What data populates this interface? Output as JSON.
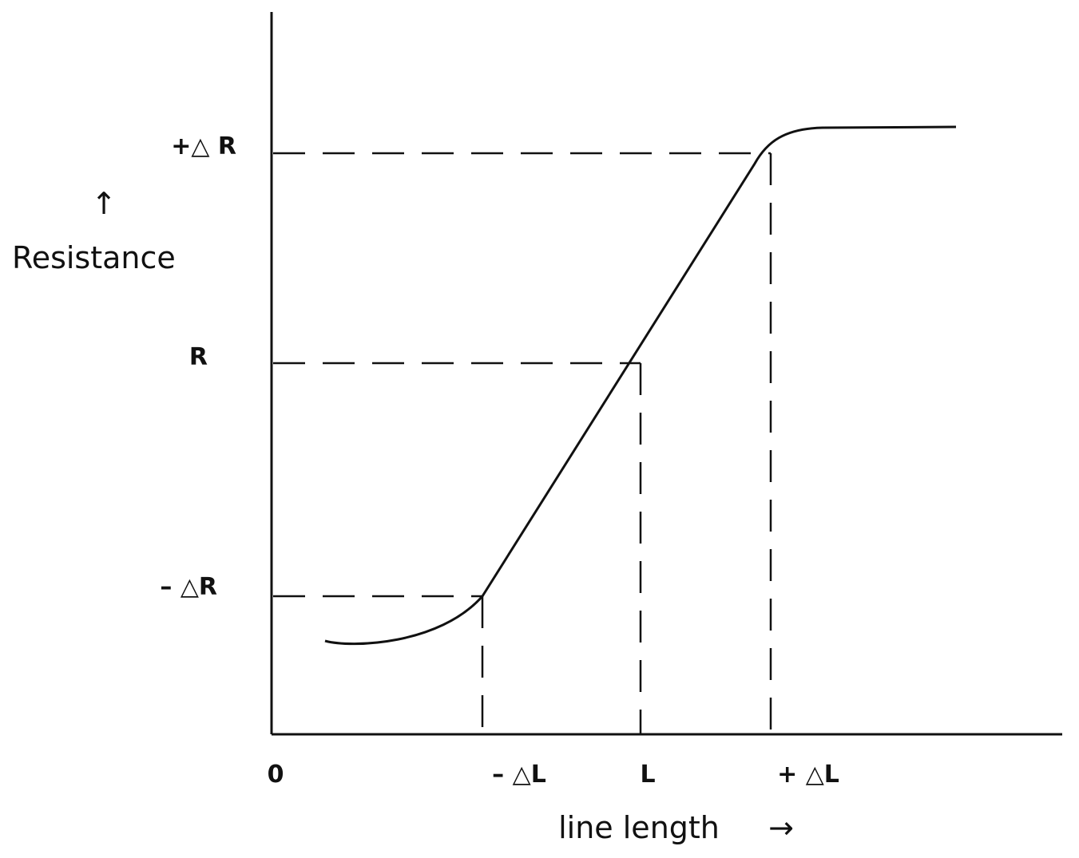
{
  "y_axis": {
    "title": "Resistance",
    "arrow": "↑",
    "labels": [
      "+△ R",
      "R",
      "– △R"
    ]
  },
  "x_axis": {
    "title": "line length",
    "arrow": "→",
    "labels": [
      "0",
      "– △L",
      "L",
      "+ △L"
    ]
  }
}
